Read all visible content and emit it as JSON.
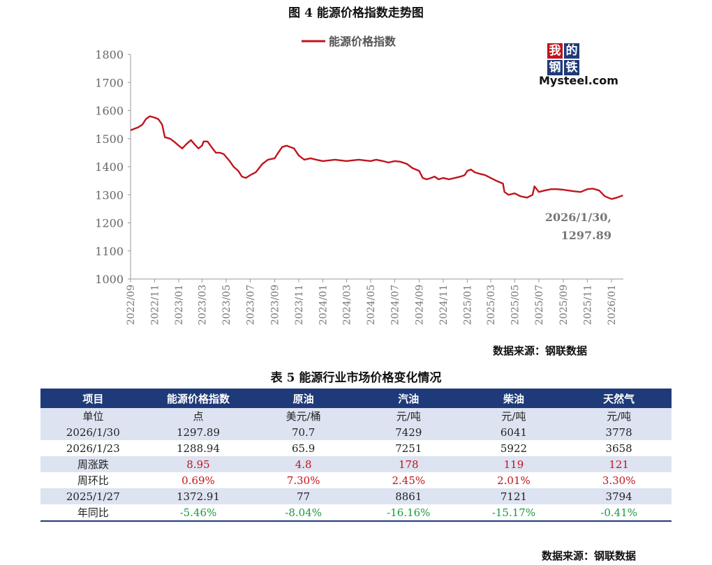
{
  "figure": {
    "title": "图 4  能源价格指数走势图",
    "source": "数据来源：钢联数据"
  },
  "logo": {
    "chars": [
      "我",
      "的",
      "钢",
      "铁"
    ],
    "word": "Mysteel.com"
  },
  "chart_data": {
    "type": "line",
    "ylim": [
      1000,
      1800
    ],
    "yticks": [
      1000,
      1100,
      1200,
      1300,
      1400,
      1500,
      1600,
      1700,
      1800
    ],
    "xticks": [
      "2022/09",
      "2022/11",
      "2023/01",
      "2023/03",
      "2023/05",
      "2023/07",
      "2023/09",
      "2023/11",
      "2024/01",
      "2024/03",
      "2024/05",
      "2024/07",
      "2024/09",
      "2024/11",
      "2025/01",
      "2025/03",
      "2025/05",
      "2025/07",
      "2025/09",
      "2025/11",
      "2026/01"
    ],
    "grid": false,
    "legend_position": "top-center",
    "series": [
      {
        "name": "能源价格指数",
        "color": "#c0141b",
        "points": [
          [
            "2022-09-01",
            1530
          ],
          [
            "2022-09-10",
            1535
          ],
          [
            "2022-09-20",
            1540
          ],
          [
            "2022-10-01",
            1550
          ],
          [
            "2022-10-10",
            1570
          ],
          [
            "2022-10-20",
            1580
          ],
          [
            "2022-11-01",
            1575
          ],
          [
            "2022-11-10",
            1570
          ],
          [
            "2022-11-20",
            1550
          ],
          [
            "2022-11-27",
            1505
          ],
          [
            "2022-12-10",
            1500
          ],
          [
            "2022-12-20",
            1490
          ],
          [
            "2023-01-01",
            1475
          ],
          [
            "2023-01-10",
            1465
          ],
          [
            "2023-01-20",
            1480
          ],
          [
            "2023-02-01",
            1495
          ],
          [
            "2023-02-10",
            1480
          ],
          [
            "2023-02-20",
            1465
          ],
          [
            "2023-03-01",
            1475
          ],
          [
            "2023-03-05",
            1490
          ],
          [
            "2023-03-15",
            1490
          ],
          [
            "2023-03-25",
            1470
          ],
          [
            "2023-04-05",
            1450
          ],
          [
            "2023-04-15",
            1450
          ],
          [
            "2023-04-25",
            1445
          ],
          [
            "2023-05-10",
            1420
          ],
          [
            "2023-05-20",
            1400
          ],
          [
            "2023-06-01",
            1385
          ],
          [
            "2023-06-10",
            1365
          ],
          [
            "2023-06-20",
            1360
          ],
          [
            "2023-07-01",
            1370
          ],
          [
            "2023-07-15",
            1380
          ],
          [
            "2023-08-01",
            1410
          ],
          [
            "2023-08-15",
            1425
          ],
          [
            "2023-09-01",
            1430
          ],
          [
            "2023-09-10",
            1450
          ],
          [
            "2023-09-20",
            1470
          ],
          [
            "2023-10-01",
            1475
          ],
          [
            "2023-10-10",
            1470
          ],
          [
            "2023-10-20",
            1465
          ],
          [
            "2023-11-01",
            1440
          ],
          [
            "2023-11-15",
            1425
          ],
          [
            "2023-12-01",
            1430
          ],
          [
            "2023-12-15",
            1425
          ],
          [
            "2024-01-01",
            1420
          ],
          [
            "2024-02-01",
            1425
          ],
          [
            "2024-03-01",
            1420
          ],
          [
            "2024-04-01",
            1425
          ],
          [
            "2024-05-01",
            1420
          ],
          [
            "2024-05-15",
            1425
          ],
          [
            "2024-06-01",
            1420
          ],
          [
            "2024-06-15",
            1415
          ],
          [
            "2024-07-01",
            1420
          ],
          [
            "2024-07-15",
            1418
          ],
          [
            "2024-08-01",
            1410
          ],
          [
            "2024-08-15",
            1395
          ],
          [
            "2024-09-01",
            1385
          ],
          [
            "2024-09-10",
            1360
          ],
          [
            "2024-09-20",
            1355
          ],
          [
            "2024-10-01",
            1360
          ],
          [
            "2024-10-10",
            1365
          ],
          [
            "2024-10-20",
            1355
          ],
          [
            "2024-11-01",
            1360
          ],
          [
            "2024-11-15",
            1355
          ],
          [
            "2024-12-01",
            1360
          ],
          [
            "2024-12-15",
            1365
          ],
          [
            "2024-12-25",
            1370
          ],
          [
            "2025-01-01",
            1385
          ],
          [
            "2025-01-10",
            1390
          ],
          [
            "2025-01-20",
            1380
          ],
          [
            "2025-02-01",
            1375
          ],
          [
            "2025-02-15",
            1370
          ],
          [
            "2025-03-01",
            1360
          ],
          [
            "2025-03-15",
            1350
          ],
          [
            "2025-04-01",
            1340
          ],
          [
            "2025-04-05",
            1310
          ],
          [
            "2025-04-15",
            1300
          ],
          [
            "2025-05-01",
            1305
          ],
          [
            "2025-05-15",
            1295
          ],
          [
            "2025-06-01",
            1290
          ],
          [
            "2025-06-15",
            1300
          ],
          [
            "2025-06-20",
            1330
          ],
          [
            "2025-07-01",
            1310
          ],
          [
            "2025-07-15",
            1315
          ],
          [
            "2025-08-01",
            1320
          ],
          [
            "2025-08-15",
            1320
          ],
          [
            "2025-09-01",
            1318
          ],
          [
            "2025-09-15",
            1315
          ],
          [
            "2025-10-01",
            1312
          ],
          [
            "2025-10-15",
            1310
          ],
          [
            "2025-11-01",
            1320
          ],
          [
            "2025-11-15",
            1322
          ],
          [
            "2025-12-01",
            1315
          ],
          [
            "2025-12-15",
            1295
          ],
          [
            "2026-01-01",
            1285
          ],
          [
            "2026-01-15",
            1290
          ],
          [
            "2026-01-30",
            1297.89
          ]
        ]
      }
    ],
    "annotation": {
      "line1": "2026/1/30,",
      "line2": "1297.89"
    }
  },
  "table": {
    "title": "表 5 能源行业市场价格变化情况",
    "headers": [
      "项目",
      "能源价格指数",
      "原油",
      "汽油",
      "柴油",
      "天然气"
    ],
    "rows": [
      [
        "单位",
        "点",
        "美元/桶",
        "元/吨",
        "元/吨",
        "元/吨"
      ],
      [
        "2026/1/30",
        "1297.89",
        "70.7",
        "7429",
        "6041",
        "3778"
      ],
      [
        "2026/1/23",
        "1288.94",
        "65.9",
        "7251",
        "5922",
        "3658"
      ],
      [
        "周涨跌",
        "8.95",
        "4.8",
        "178",
        "119",
        "121"
      ],
      [
        "周环比",
        "0.69%",
        "7.30%",
        "2.45%",
        "2.01%",
        "3.30%"
      ],
      [
        "2025/1/27",
        "1372.91",
        "77",
        "8861",
        "7121",
        "3794"
      ],
      [
        "年同比",
        "-5.46%",
        "-8.04%",
        "-16.16%",
        "-15.17%",
        "-0.41%"
      ]
    ],
    "source": "数据来源：钢联数据"
  }
}
